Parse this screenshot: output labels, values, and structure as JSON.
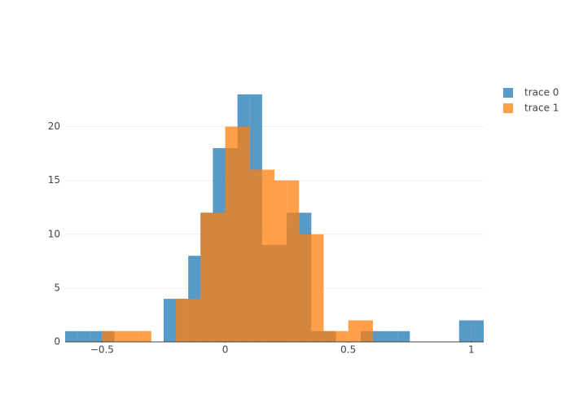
{
  "chart_data": {
    "type": "histogram",
    "barmode": "overlay",
    "opacity": 0.75,
    "bins": [
      -0.65,
      -0.6,
      -0.55,
      -0.5,
      -0.45,
      -0.4,
      -0.35,
      -0.3,
      -0.25,
      -0.2,
      -0.15,
      -0.1,
      -0.05,
      0,
      0.05,
      0.1,
      0.15,
      0.2,
      0.25,
      0.3,
      0.35,
      0.4,
      0.45,
      0.5,
      0.55,
      0.6,
      0.65,
      0.7,
      0.75,
      0.8,
      0.85,
      0.9,
      0.95,
      1.0,
      1.05
    ],
    "series": [
      {
        "name": "trace 0",
        "color": "#1f77b4",
        "values": [
          1,
          1,
          1,
          1,
          0,
          0,
          0,
          0,
          4,
          4,
          8,
          12,
          18,
          18,
          23,
          23,
          9,
          9,
          12,
          12,
          1,
          1,
          0,
          0,
          1,
          1,
          1,
          1,
          0,
          0,
          0,
          0,
          2,
          2
        ]
      },
      {
        "name": "trace 1",
        "color": "#ff7f0e",
        "values": [
          0,
          0,
          0,
          1,
          1,
          1,
          1,
          0,
          0,
          4,
          4,
          12,
          12,
          20,
          20,
          16,
          16,
          15,
          15,
          10,
          10,
          1,
          1,
          2,
          2,
          0,
          0,
          0,
          0,
          0,
          0,
          0,
          0,
          0
        ]
      }
    ],
    "xlim": [
      -0.65,
      1.05
    ],
    "ylim": [
      0,
      24.2
    ],
    "xticks": [
      {
        "value": -0.5,
        "label": "−0.5"
      },
      0,
      0.5,
      1
    ],
    "yticks": [
      0,
      5,
      10,
      15,
      20
    ],
    "grid": true
  }
}
